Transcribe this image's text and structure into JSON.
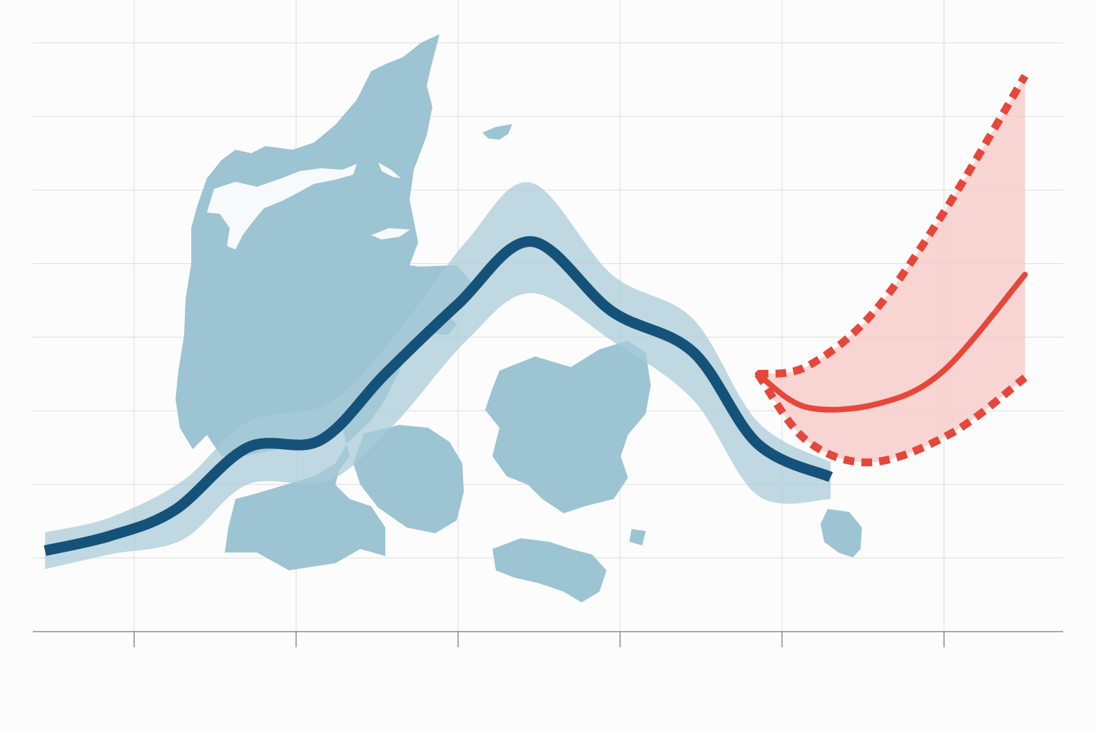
{
  "chart_data": {
    "type": "line",
    "title": "",
    "xlabel": "",
    "ylabel": "",
    "grid": true,
    "xlim": [
      -0.6,
      5.8
    ],
    "ylim": [
      0,
      8
    ],
    "x_ticks": [
      0,
      1,
      2,
      3,
      4,
      5
    ],
    "series": [
      {
        "kind": "historical",
        "color": "#15527a",
        "band_color": "#a9cbd8",
        "points": [
          [
            -0.55,
            1.1
          ],
          [
            -0.15,
            1.3
          ],
          [
            0.25,
            1.65
          ],
          [
            0.7,
            2.5
          ],
          [
            1.15,
            2.6
          ],
          [
            1.55,
            3.5
          ],
          [
            2.0,
            4.45
          ],
          [
            2.45,
            5.3
          ],
          [
            2.95,
            4.35
          ],
          [
            3.45,
            3.8
          ],
          [
            3.85,
            2.55
          ],
          [
            4.3,
            2.1
          ]
        ],
        "band_lower": [
          [
            -0.55,
            0.85
          ],
          [
            -0.15,
            1.05
          ],
          [
            0.3,
            1.25
          ],
          [
            0.7,
            2.0
          ],
          [
            1.2,
            2.05
          ],
          [
            1.6,
            2.8
          ],
          [
            2.05,
            3.95
          ],
          [
            2.45,
            4.6
          ],
          [
            2.95,
            3.95
          ],
          [
            3.45,
            3.15
          ],
          [
            3.85,
            1.85
          ],
          [
            4.3,
            1.8
          ]
        ],
        "band_upper": [
          [
            -0.55,
            1.35
          ],
          [
            -0.15,
            1.55
          ],
          [
            0.3,
            2.05
          ],
          [
            0.7,
            2.85
          ],
          [
            1.2,
            3.1
          ],
          [
            1.6,
            4.0
          ],
          [
            2.05,
            5.3
          ],
          [
            2.45,
            6.1
          ],
          [
            2.95,
            4.85
          ],
          [
            3.45,
            4.25
          ],
          [
            3.85,
            2.85
          ],
          [
            4.3,
            2.3
          ]
        ]
      },
      {
        "kind": "projection",
        "color": "#e5473a",
        "band_color": "#f7c8c4",
        "points": [
          [
            3.85,
            3.5
          ],
          [
            4.15,
            3.05
          ],
          [
            4.6,
            3.1
          ],
          [
            5.0,
            3.55
          ],
          [
            5.5,
            4.85
          ]
        ],
        "band_lower": [
          [
            3.85,
            3.5
          ],
          [
            4.15,
            2.6
          ],
          [
            4.55,
            2.3
          ],
          [
            5.05,
            2.7
          ],
          [
            5.5,
            3.45
          ]
        ],
        "band_upper": [
          [
            3.85,
            3.5
          ],
          [
            4.15,
            3.6
          ],
          [
            4.55,
            4.3
          ],
          [
            5.0,
            5.7
          ],
          [
            5.5,
            7.55
          ]
        ]
      }
    ]
  }
}
